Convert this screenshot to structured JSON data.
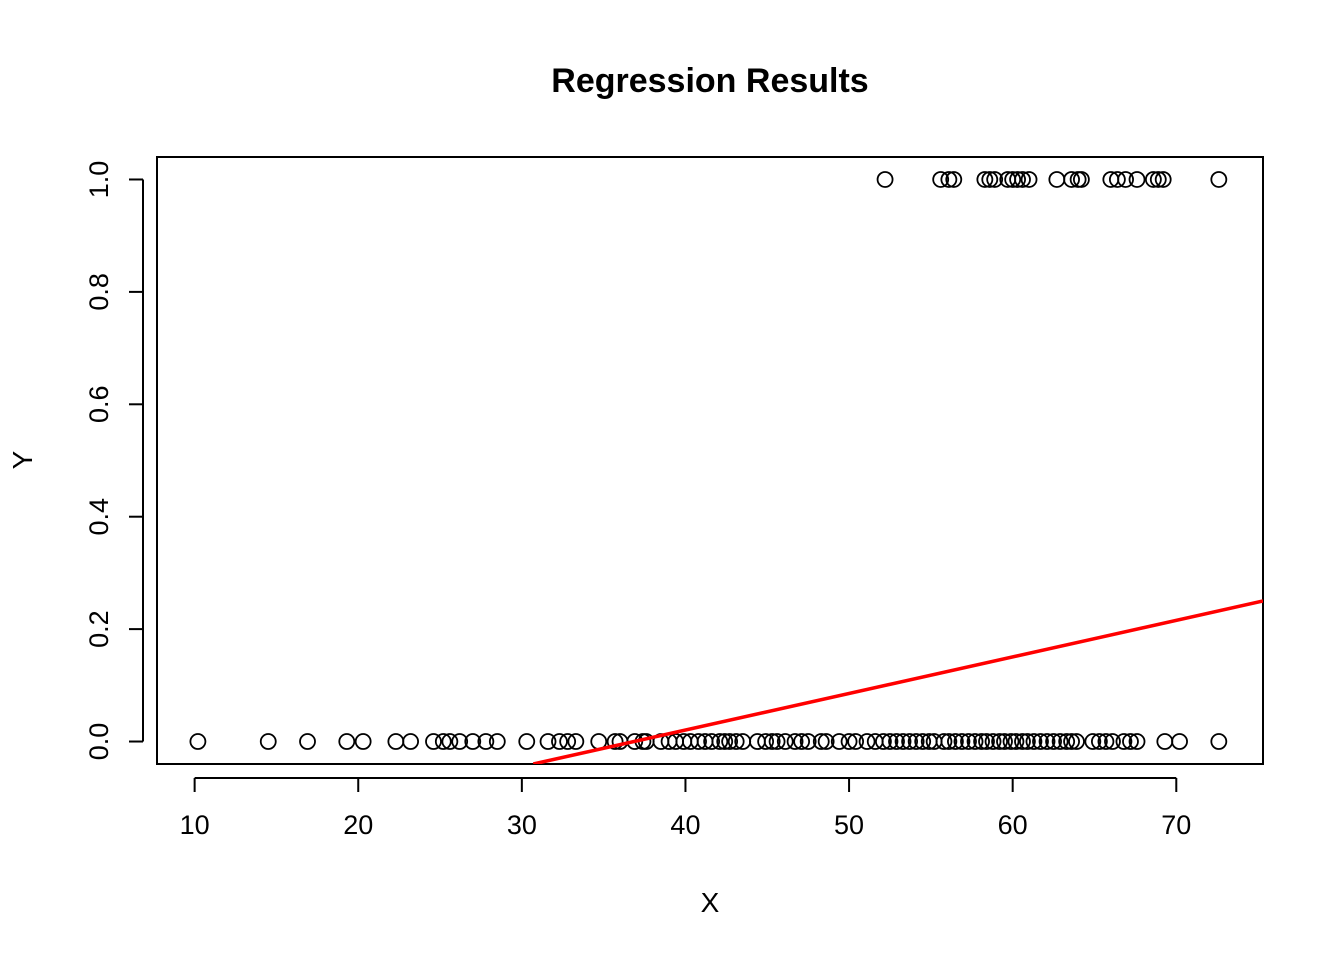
{
  "chart_data": {
    "type": "scatter",
    "title": "Regression Results",
    "xlabel": "X",
    "ylabel": "Y",
    "xlim": [
      7.7,
      75.3
    ],
    "ylim": [
      -0.04,
      1.04
    ],
    "x_ticks": [
      10,
      20,
      30,
      40,
      50,
      60,
      70
    ],
    "y_ticks": [
      0.0,
      0.2,
      0.4,
      0.6,
      0.8,
      1.0
    ],
    "x_tick_labels": [
      "10",
      "20",
      "30",
      "40",
      "50",
      "60",
      "70"
    ],
    "y_tick_labels": [
      "0.0",
      "0.2",
      "0.4",
      "0.6",
      "0.8",
      "1.0"
    ],
    "grid": false,
    "colors": {
      "points": "#000000",
      "fit_line": "#ff0000"
    },
    "series": [
      {
        "type": "scatter",
        "marker": "open-circle",
        "points_y1": {
          "y": 1.0,
          "x": [
            52.2,
            55.6,
            56.1,
            56.4,
            58.3,
            58.6,
            58.9,
            59.7,
            60.0,
            60.3,
            60.6,
            61.0,
            62.7,
            63.6,
            64.0,
            64.2,
            66.0,
            66.4,
            66.9,
            67.6,
            68.6,
            68.9,
            69.2,
            72.6
          ]
        },
        "points_y0": {
          "y": 0.0,
          "x": [
            10.2,
            14.5,
            16.9,
            19.3,
            20.3,
            22.3,
            23.2,
            24.6,
            25.2,
            25.6,
            26.2,
            27.0,
            27.8,
            28.5,
            30.3,
            31.6,
            32.3,
            32.8,
            33.3,
            34.7,
            35.7,
            36.0,
            36.9,
            37.4,
            37.6,
            38.5,
            39.0,
            39.4,
            39.9,
            40.3,
            40.8,
            41.2,
            41.6,
            42.1,
            42.4,
            42.7,
            43.1,
            43.5,
            44.4,
            44.9,
            45.3,
            45.6,
            46.1,
            46.7,
            47.1,
            47.5,
            48.3,
            48.6,
            49.4,
            50.0,
            50.4,
            51.1,
            51.6,
            52.1,
            52.5,
            52.9,
            53.3,
            53.7,
            54.1,
            54.5,
            54.9,
            55.2,
            55.8,
            56.1,
            56.5,
            56.9,
            57.3,
            57.7,
            58.1,
            58.4,
            58.8,
            59.2,
            59.5,
            59.9,
            60.2,
            60.6,
            60.9,
            61.3,
            61.7,
            62.1,
            62.5,
            62.9,
            63.3,
            63.6,
            63.9,
            64.9,
            65.3,
            65.7,
            66.1,
            66.8,
            67.2,
            67.6,
            69.3,
            70.2,
            72.6
          ]
        }
      },
      {
        "type": "line",
        "x": [
          30.7,
          75.3
        ],
        "y": [
          -0.04,
          0.25
        ]
      }
    ]
  }
}
